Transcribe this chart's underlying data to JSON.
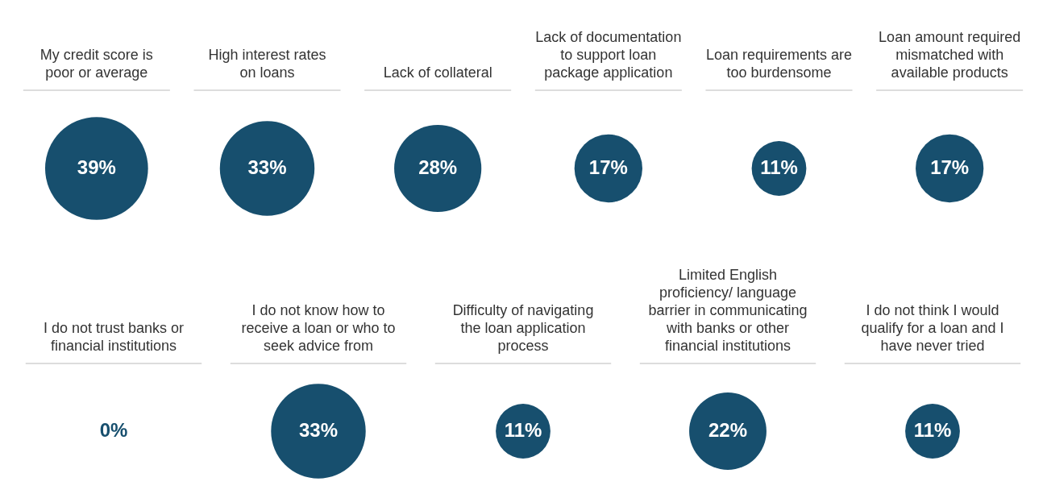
{
  "chart_data": [
    {
      "type": "other",
      "categories": [
        "My credit score is poor or average",
        "High interest rates on loans",
        "Lack of collateral",
        "Lack of documentation to support loan package application",
        "Loan requirements are too burdensome",
        "Loan amount required mismatched with available products"
      ],
      "values": [
        39,
        33,
        28,
        17,
        11,
        17
      ],
      "value_labels": [
        "39%",
        "33%",
        "28%",
        "17%",
        "11%",
        "17%"
      ],
      "color": "#174f6e"
    },
    {
      "type": "other",
      "categories": [
        "I do not trust banks or financial institutions",
        "I do not know how to receive a loan or who to seek advice from",
        "Difficulty of navigating the loan application process",
        "Limited English proficiency/ language barrier in communicating with banks or other financial institutions",
        "I do not think I would qualify for a loan and I have never tried"
      ],
      "values": [
        0,
        33,
        11,
        22,
        11
      ],
      "value_labels": [
        "0%",
        "33%",
        "11%",
        "22%",
        "11%"
      ],
      "color": "#174f6e"
    }
  ]
}
